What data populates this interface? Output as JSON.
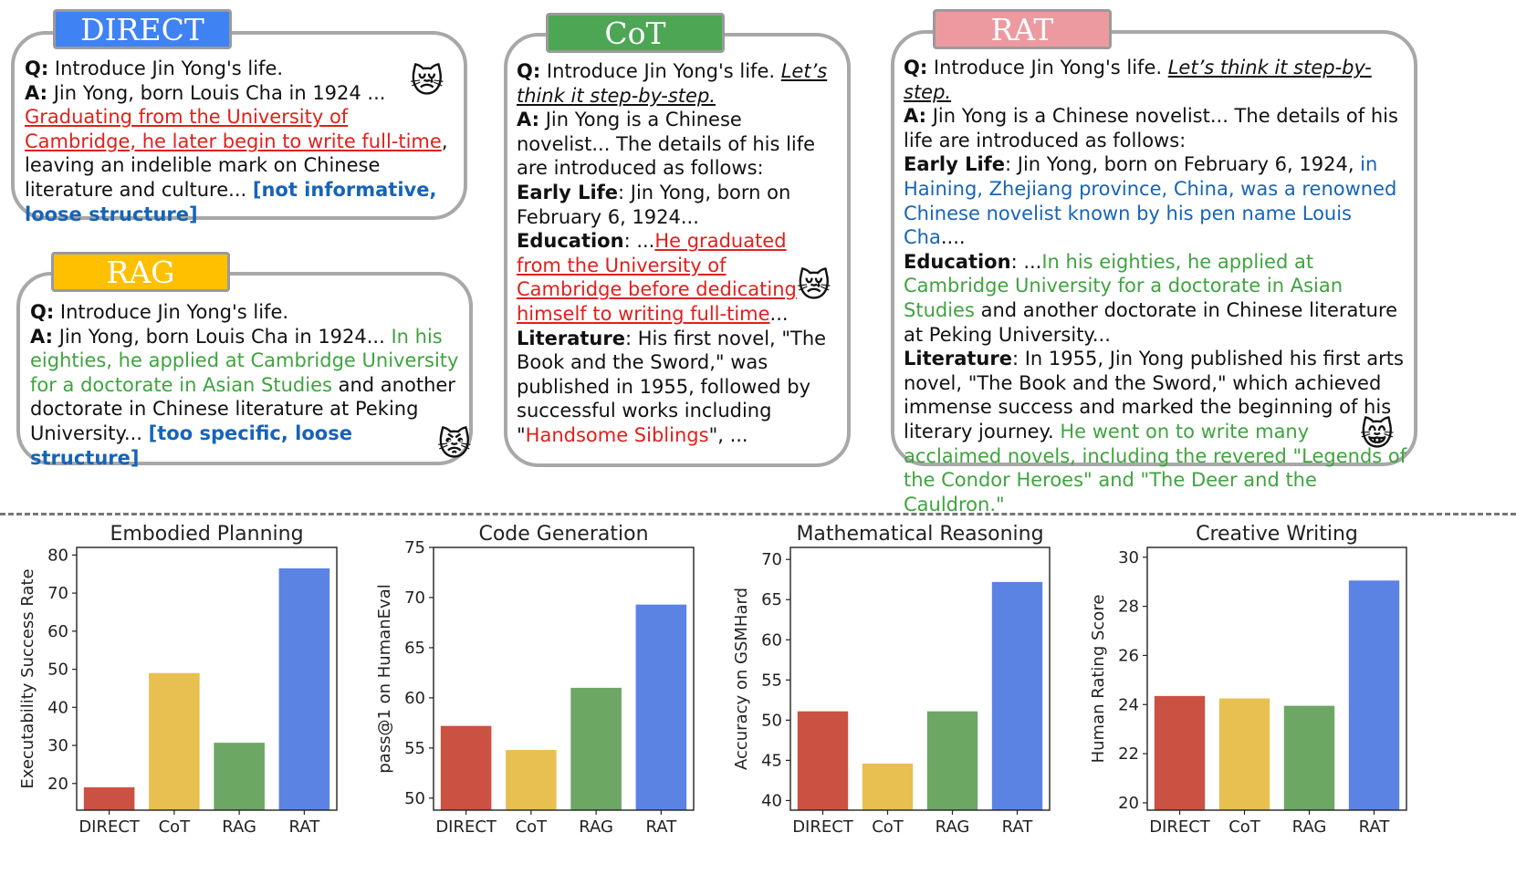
{
  "colors": {
    "direct": "#3f82f4",
    "cot": "#4ca654",
    "rat": "#ec9aa0",
    "rag": "#ffc000",
    "bar_direct": "#cb5142",
    "bar_cot": "#e8c051",
    "bar_rag": "#6ca764",
    "bar_rat": "#5a83e4"
  },
  "panels": {
    "direct": {
      "tag": "DIRECT",
      "q_label": "Q:",
      "q_text": " Introduce Jin Yong's life.",
      "a_label": "A:",
      "a_text": "  Jin Yong, born Louis Cha in 1924 ...",
      "a_red": "Graduating from the University of Cambridge, he later begin to write full-time",
      "a_rest": ", leaving an indelible mark on Chinese literature and culture... ",
      "a_note": "[not informative, loose structure]",
      "emoji": "😿"
    },
    "rag": {
      "tag": "RAG",
      "q_label": "Q:",
      "q_text": " Introduce Jin Yong's life.",
      "a_label": "A:",
      "a_text": "  Jin Yong, born Louis Cha in 1924... ",
      "a_green": "In his eighties, he applied at Cambridge University for a doctorate in Asian Studies",
      "a_rest": " and another doctorate in Chinese literature at Peking University... ",
      "a_note": "[too specific, loose structure]",
      "emoji": "😾"
    },
    "cot": {
      "tag": "CoT",
      "q_label": "Q:",
      "q_text": " Introduce Jin Yong's life. ",
      "q_step": "Let’s think it step-by-step.",
      "a_label": "A:",
      "a_text": " Jin Yong is a Chinese novelist... The details of his life are introduced as follows:",
      "early_label": "Early Life",
      "early_text": ": Jin Yong, born on February 6, 1924...",
      "edu_label": "Education",
      "edu_pre": ": ...",
      "edu_red": "He graduated from the University of Cambridge before dedicating himself to writing full-time",
      "edu_post": "...",
      "lit_label": "Literature",
      "lit_text": ": His first novel, \"The Book and the Sword,\" was published in 1955, followed by successful works including \"",
      "lit_red": "Handsome Siblings",
      "lit_post": "\", ...",
      "emoji": "😿"
    },
    "rat": {
      "tag": "RAT",
      "q_label": "Q:",
      "q_text": " Introduce Jin Yong's life. ",
      "q_step": "Let’s think it step-by-step.",
      "a_label": "A:",
      "a_text": " Jin Yong is a Chinese novelist... The details of his life are introduced as follows:",
      "early_label": "Early Life",
      "early_text": ": Jin Yong, born on February 6, 1924, ",
      "early_blue": "in Haining, Zhejiang province, China, was a renowned Chinese novelist known by his pen name Louis Cha",
      "early_post": "....",
      "edu_label": "Education",
      "edu_pre": ": ...",
      "edu_green": "In his eighties, he applied at Cambridge University for a doctorate in Asian Studies",
      "edu_post": " and another doctorate in Chinese literature at Peking University...",
      "lit_label": "Literature",
      "lit_text": ":  In 1955, Jin Yong published his first arts novel, \"The Book and the Sword,\" which achieved immense success and marked the beginning of his literary journey. ",
      "lit_green": "He went on to write many acclaimed novels, including the revered \"Legends of the Condor Heroes\" and \"The Deer and the Cauldron.\"",
      "emoji": "😸"
    }
  },
  "chart_data": [
    {
      "type": "bar",
      "title": "Embodied Planning",
      "ylabel": "Executability Success Rate",
      "categories": [
        "DIRECT",
        "CoT",
        "RAG",
        "RAT"
      ],
      "values": [
        19.0,
        49.0,
        30.7,
        76.5
      ],
      "ylim": [
        13,
        82
      ],
      "yticks": [
        20,
        30,
        40,
        50,
        60,
        70,
        80
      ]
    },
    {
      "type": "bar",
      "title": "Code Generation",
      "ylabel": "pass@1 on HumanEval",
      "categories": [
        "DIRECT",
        "CoT",
        "RAG",
        "RAT"
      ],
      "values": [
        57.2,
        54.8,
        61.0,
        69.3
      ],
      "ylim": [
        48.8,
        75
      ],
      "yticks": [
        50,
        55,
        60,
        65,
        70,
        75
      ]
    },
    {
      "type": "bar",
      "title": "Mathematical Reasoning",
      "ylabel": "Accuracy on GSMHard",
      "categories": [
        "DIRECT",
        "CoT",
        "RAG",
        "RAT"
      ],
      "values": [
        51.1,
        44.6,
        51.1,
        67.2
      ],
      "ylim": [
        38.8,
        71.5
      ],
      "yticks": [
        40,
        45,
        50,
        55,
        60,
        65,
        70
      ]
    },
    {
      "type": "bar",
      "title": "Creative Writing",
      "ylabel": "Human Rating Score",
      "categories": [
        "DIRECT",
        "CoT",
        "RAG",
        "RAT"
      ],
      "values": [
        24.35,
        24.25,
        23.95,
        29.05
      ],
      "ylim": [
        19.7,
        30.4
      ],
      "yticks": [
        20,
        22,
        24,
        26,
        28,
        30
      ]
    }
  ]
}
